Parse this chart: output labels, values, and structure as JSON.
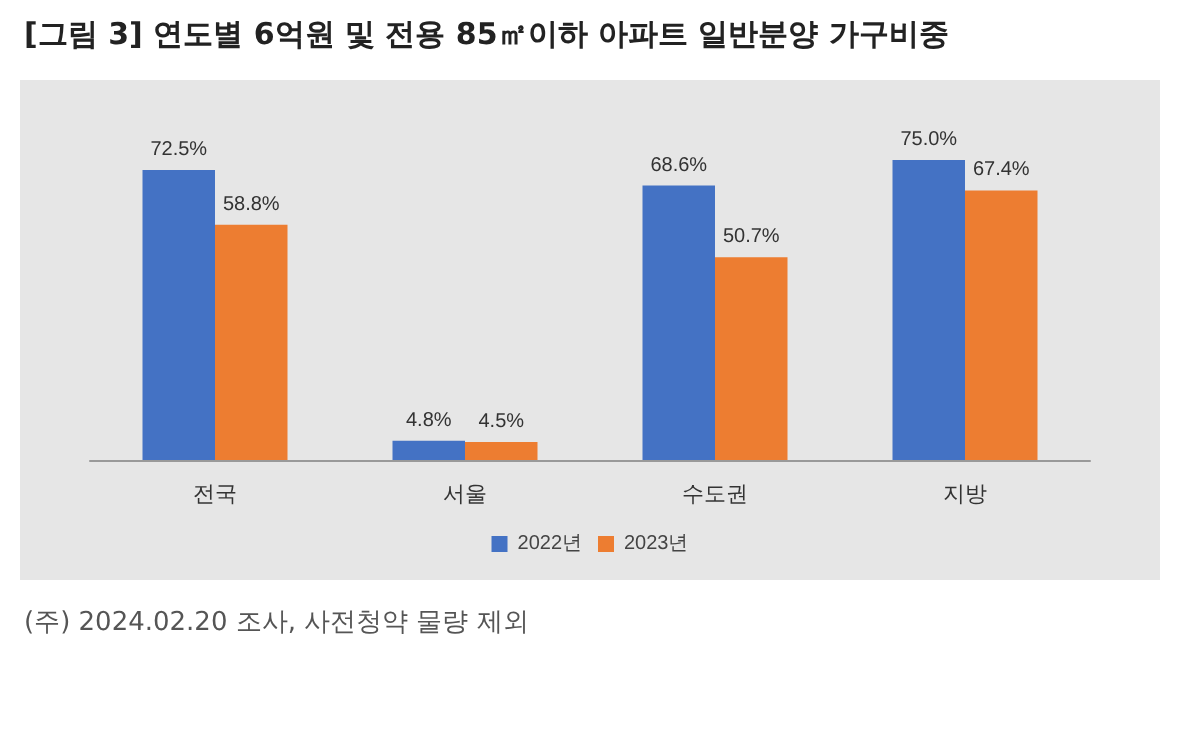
{
  "chart_data": {
    "type": "bar",
    "title": "[그림 3] 연도별 6억원 및 전용 85㎡이하 아파트 일반분양 가구비중",
    "categories": [
      "전국",
      "서울",
      "수도권",
      "지방"
    ],
    "series": [
      {
        "name": "2022년",
        "color": "#4472c4",
        "values": [
          72.5,
          4.8,
          68.6,
          75.0
        ],
        "value_labels": [
          "72.5%",
          "4.8%",
          "68.6%",
          "75.0%"
        ]
      },
      {
        "name": "2023년",
        "color": "#ed7d31",
        "values": [
          58.8,
          4.5,
          50.7,
          67.4
        ],
        "value_labels": [
          "58.8%",
          "4.5%",
          "50.7%",
          "67.4%"
        ]
      }
    ],
    "tick_labels": "x",
    "legend": "bottom",
    "annotations": [
      "(주) 2024.02.20 조사, 사전청약 물량 제외"
    ]
  }
}
